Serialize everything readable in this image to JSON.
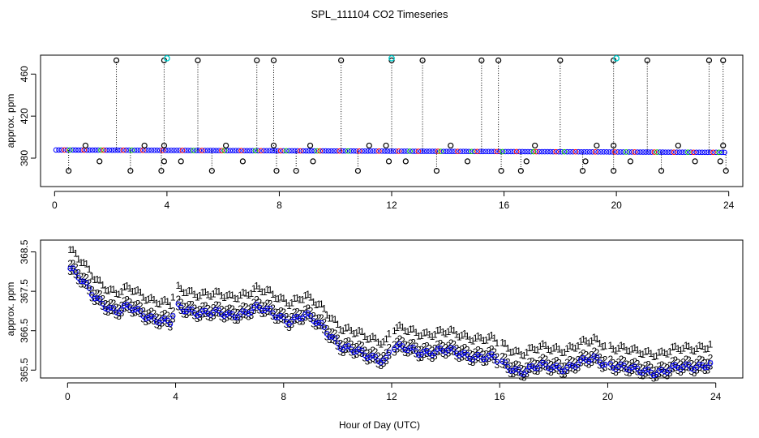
{
  "chart_data": [
    {
      "type": "scatter",
      "panel": "top",
      "title": "SPL_111104  CO2 Timeseries",
      "xlabel": "",
      "ylabel": "approx. ppm",
      "xlim": [
        -0.5,
        24.5
      ],
      "ylim": [
        353,
        478
      ],
      "xticks": [
        0,
        4,
        8,
        12,
        16,
        20,
        24
      ],
      "yticks": [
        380,
        420,
        460
      ],
      "grid": false,
      "colors": {
        "baseline_blue": "#0000ff",
        "baseline_red": "#ff0000",
        "baseline_green": "#00c000",
        "spike_black": "#000000",
        "spike_cyan": "#00cccc"
      },
      "baseline": {
        "start_hour": 0.05,
        "end_hour": 23.85,
        "step_hours": 0.1,
        "start_ppm": 387.8,
        "end_ppm": 385.5
      },
      "spikes_high": [
        2.2,
        3.9,
        5.1,
        7.2,
        7.8,
        10.2,
        12.0,
        13.1,
        15.2,
        15.8,
        18.0,
        19.9,
        21.1,
        23.3,
        23.8
      ],
      "spikes_high_value": 473,
      "cyan_markers": [
        {
          "x": 4.0,
          "y": 475
        },
        {
          "x": 12.0,
          "y": 475
        },
        {
          "x": 20.0,
          "y": 475
        }
      ],
      "outliers_mid_high": [
        1.1,
        3.2,
        3.9,
        6.1,
        7.8,
        9.1,
        11.2,
        11.8,
        14.1,
        17.1,
        19.3,
        19.9,
        22.2,
        23.8
      ],
      "outliers_mid_high_value": 392,
      "outliers_mid_low": [
        1.6,
        3.9,
        4.5,
        6.7,
        9.2,
        11.9,
        12.5,
        14.7,
        16.8,
        18.9,
        20.5,
        22.8,
        23.7
      ],
      "outliers_mid_low_value": 377,
      "outliers_low": [
        0.5,
        2.7,
        3.8,
        5.6,
        7.9,
        8.6,
        10.8,
        13.6,
        15.9,
        16.6,
        18.8,
        19.9,
        21.6,
        23.9
      ],
      "outliers_low_value": 368
    },
    {
      "type": "scatter",
      "panel": "bottom",
      "title": "",
      "xlabel": "Hour of Day (UTC)",
      "ylabel": "approx. ppm",
      "xlim": [
        -1,
        25
      ],
      "ylim": [
        365.3,
        368.8
      ],
      "xticks": [
        0,
        4,
        8,
        12,
        16,
        20,
        24
      ],
      "yticks": [
        365.5,
        366.5,
        367.5,
        368.5
      ],
      "grid": false,
      "series": [
        {
          "name": "1",
          "symbol": "1",
          "color": "#ff0000"
        },
        {
          "name": "2",
          "symbol": "2",
          "color": "#00c000"
        },
        {
          "name": "3",
          "symbol": "3",
          "color": "#0000ff"
        },
        {
          "name": "circles",
          "symbol": "o",
          "color": "#0000ff"
        }
      ],
      "profile": {
        "x": [
          0.1,
          1.0,
          1.8,
          2.3,
          3.0,
          3.8,
          4.0,
          5.0,
          6.0,
          7.0,
          7.8,
          8.2,
          8.8,
          9.5,
          10.2,
          11.0,
          11.8,
          12.0,
          13.0,
          14.0,
          15.0,
          15.8,
          16.0,
          16.8,
          17.5,
          18.5,
          19.5,
          20.0,
          21.0,
          22.0,
          23.0,
          23.8
        ],
        "y": [
          368.0,
          367.3,
          366.9,
          367.0,
          366.8,
          366.6,
          367.0,
          366.9,
          366.8,
          367.0,
          366.8,
          366.7,
          366.8,
          366.5,
          366.0,
          365.8,
          365.7,
          366.0,
          365.9,
          365.9,
          365.8,
          365.7,
          365.6,
          365.4,
          365.5,
          365.5,
          365.7,
          365.6,
          365.4,
          365.4,
          365.5,
          365.6
        ]
      },
      "offsets": {
        "1": 0.55,
        "2": 0.2,
        "3": 0.0
      },
      "step_hours": 0.1,
      "gaps": [
        [
          3.95,
          4.05
        ],
        [
          11.95,
          12.05
        ],
        [
          15.95,
          16.05
        ],
        [
          19.95,
          20.05
        ]
      ]
    }
  ]
}
